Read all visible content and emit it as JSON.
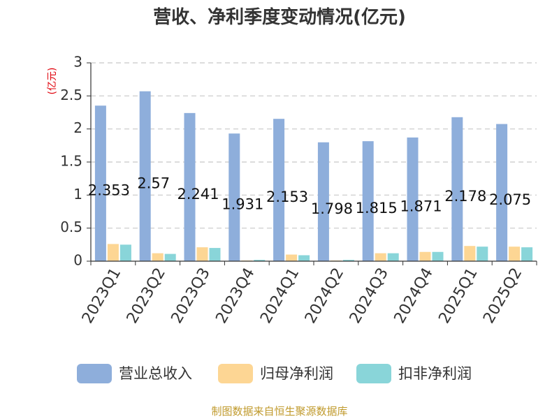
{
  "chart_data": {
    "type": "bar",
    "title": "营收、净利季度变动情况(亿元)",
    "ylabel": "(亿元)",
    "categories": [
      "2023Q1",
      "2023Q2",
      "2023Q3",
      "2023Q4",
      "2024Q1",
      "2024Q2",
      "2024Q3",
      "2024Q4",
      "2025Q1",
      "2025Q2"
    ],
    "series": [
      {
        "name": "营业总收入",
        "color": "#8eaedb",
        "values": [
          2.353,
          2.57,
          2.241,
          1.931,
          2.153,
          1.798,
          1.815,
          1.871,
          2.178,
          2.075
        ]
      },
      {
        "name": "归母净利润",
        "color": "#fdd694",
        "values": [
          0.26,
          0.12,
          0.21,
          0.01,
          0.1,
          0.01,
          0.12,
          0.14,
          0.23,
          0.22
        ]
      },
      {
        "name": "扣非净利润",
        "color": "#89d5d9",
        "values": [
          0.25,
          0.11,
          0.2,
          0.02,
          0.09,
          0.02,
          0.12,
          0.14,
          0.22,
          0.21
        ]
      }
    ],
    "data_labels": [
      "2.353",
      "2.57",
      "2.241",
      "1.931",
      "2.153",
      "1.798",
      "1.815",
      "1.871",
      "2.178",
      "2.075"
    ],
    "yticks": [
      "0",
      "0.5",
      "1",
      "1.5",
      "2",
      "2.5",
      "3"
    ],
    "ylim": [
      0,
      3
    ],
    "grid": true,
    "legend_position": "bottom"
  },
  "source_text": "制图数据来自恒生聚源数据库"
}
